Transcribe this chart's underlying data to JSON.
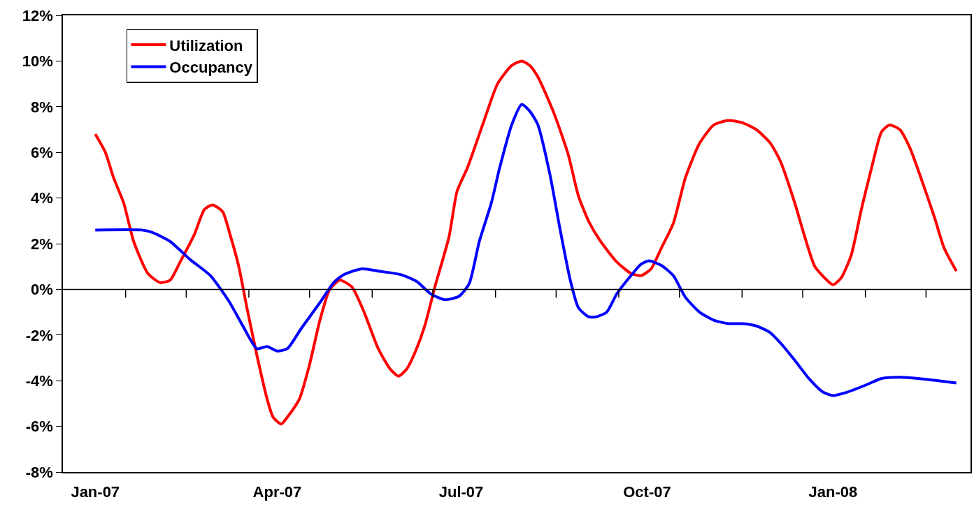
{
  "chart_data": {
    "type": "line",
    "series": [
      {
        "name": "Utilization",
        "color": "#ff0000",
        "x": [
          "2007-01-01",
          "2007-01-06",
          "2007-01-10",
          "2007-01-15",
          "2007-01-20",
          "2007-01-27",
          "2007-02-02",
          "2007-02-07",
          "2007-02-12",
          "2007-02-19",
          "2007-02-24",
          "2007-02-28",
          "2007-03-05",
          "2007-03-09",
          "2007-03-13",
          "2007-03-17",
          "2007-03-22",
          "2007-03-27",
          "2007-03-30",
          "2007-04-03",
          "2007-04-06",
          "2007-04-12",
          "2007-04-17",
          "2007-04-22",
          "2007-04-27",
          "2007-05-02",
          "2007-05-08",
          "2007-05-14",
          "2007-05-21",
          "2007-05-27",
          "2007-05-31",
          "2007-06-04",
          "2007-06-08",
          "2007-06-13",
          "2007-06-18",
          "2007-06-25",
          "2007-06-29",
          "2007-07-04",
          "2007-07-12",
          "2007-07-19",
          "2007-07-26",
          "2007-07-31",
          "2007-08-04",
          "2007-08-08",
          "2007-08-16",
          "2007-08-23",
          "2007-08-28",
          "2007-09-02",
          "2007-09-08",
          "2007-09-16",
          "2007-09-23",
          "2007-09-28",
          "2007-10-03",
          "2007-10-08",
          "2007-10-14",
          "2007-10-20",
          "2007-10-27",
          "2007-11-03",
          "2007-11-10",
          "2007-11-17",
          "2007-11-24",
          "2007-12-01",
          "2007-12-06",
          "2007-12-13",
          "2007-12-18",
          "2007-12-23",
          "2007-12-29",
          "2008-01-01",
          "2008-01-05",
          "2008-01-10",
          "2008-01-15",
          "2008-01-20",
          "2008-01-25",
          "2008-01-29",
          "2008-02-03",
          "2008-02-08",
          "2008-02-13",
          "2008-02-20",
          "2008-02-25",
          "2008-03-02"
        ],
        "values": [
          6.8,
          6.0,
          4.9,
          3.8,
          2.1,
          0.7,
          0.3,
          0.4,
          1.2,
          2.4,
          3.5,
          3.7,
          3.4,
          2.3,
          1.0,
          -0.8,
          -2.9,
          -4.8,
          -5.6,
          -5.9,
          -5.6,
          -4.8,
          -3.3,
          -1.4,
          0.0,
          0.4,
          0.1,
          -1.0,
          -2.6,
          -3.5,
          -3.8,
          -3.5,
          -2.8,
          -1.6,
          0.1,
          2.3,
          4.3,
          5.3,
          7.3,
          9.0,
          9.8,
          10.0,
          9.8,
          9.3,
          7.7,
          5.9,
          4.1,
          3.0,
          2.1,
          1.2,
          0.7,
          0.6,
          0.9,
          1.8,
          2.9,
          4.9,
          6.4,
          7.2,
          7.4,
          7.3,
          7.0,
          6.4,
          5.6,
          3.8,
          2.3,
          1.0,
          0.4,
          0.2,
          0.5,
          1.5,
          3.5,
          5.3,
          6.9,
          7.2,
          7.0,
          6.2,
          5.0,
          3.2,
          1.8,
          0.8
        ]
      },
      {
        "name": "Occupancy",
        "color": "#0000ff",
        "x": [
          "2007-01-01",
          "2007-01-24",
          "2007-01-29",
          "2007-02-07",
          "2007-02-17",
          "2007-02-27",
          "2007-03-08",
          "2007-03-15",
          "2007-03-22",
          "2007-03-27",
          "2007-04-01",
          "2007-04-06",
          "2007-04-13",
          "2007-04-22",
          "2007-04-29",
          "2007-05-04",
          "2007-05-13",
          "2007-05-21",
          "2007-06-01",
          "2007-06-09",
          "2007-06-16",
          "2007-06-23",
          "2007-06-30",
          "2007-07-05",
          "2007-07-10",
          "2007-07-16",
          "2007-07-20",
          "2007-07-26",
          "2007-07-31",
          "2007-08-04",
          "2007-08-08",
          "2007-08-14",
          "2007-08-19",
          "2007-08-24",
          "2007-08-28",
          "2007-09-02",
          "2007-09-06",
          "2007-09-11",
          "2007-09-16",
          "2007-09-23",
          "2007-09-28",
          "2007-10-02",
          "2007-10-08",
          "2007-10-14",
          "2007-10-20",
          "2007-10-27",
          "2007-11-03",
          "2007-11-10",
          "2007-11-17",
          "2007-11-24",
          "2007-12-01",
          "2007-12-06",
          "2007-12-13",
          "2007-12-20",
          "2007-12-27",
          "2008-01-01",
          "2008-01-08",
          "2008-01-17",
          "2008-01-25",
          "2008-02-03",
          "2008-02-12",
          "2008-02-22",
          "2008-03-02"
        ],
        "values": [
          2.6,
          2.6,
          2.5,
          2.1,
          1.3,
          0.6,
          -0.5,
          -1.6,
          -2.6,
          -2.5,
          -2.7,
          -2.6,
          -1.7,
          -0.6,
          0.3,
          0.65,
          0.9,
          0.8,
          0.65,
          0.35,
          -0.2,
          -0.45,
          -0.3,
          0.25,
          2.1,
          3.8,
          5.3,
          7.2,
          8.1,
          7.8,
          7.2,
          5.0,
          2.6,
          0.4,
          -0.8,
          -1.2,
          -1.2,
          -1.0,
          -0.2,
          0.6,
          1.1,
          1.25,
          1.05,
          0.6,
          -0.35,
          -1.0,
          -1.35,
          -1.5,
          -1.5,
          -1.6,
          -1.9,
          -2.35,
          -3.1,
          -3.9,
          -4.5,
          -4.65,
          -4.5,
          -4.2,
          -3.9,
          -3.85,
          -3.9,
          -4.0,
          -4.1
        ]
      }
    ],
    "xlim": [
      "2006-12-16",
      "2008-03-09"
    ],
    "xticks": [
      {
        "value": "2007-01-01",
        "label": "Jan-07"
      },
      {
        "value": "2007-04-01",
        "label": "Apr-07"
      },
      {
        "value": "2007-07-01",
        "label": "Jul-07"
      },
      {
        "value": "2007-10-01",
        "label": "Oct-07"
      },
      {
        "value": "2008-01-01",
        "label": "Jan-08"
      },
      {
        "value": "2007-01-16",
        "label": null
      },
      {
        "value": "2007-02-15",
        "label": null
      },
      {
        "value": "2007-03-18",
        "label": null
      },
      {
        "value": "2007-04-17",
        "label": null
      },
      {
        "value": "2007-05-18",
        "label": null
      },
      {
        "value": "2007-06-17",
        "label": null
      },
      {
        "value": "2007-07-18",
        "label": null
      },
      {
        "value": "2007-08-17",
        "label": null
      },
      {
        "value": "2007-09-17",
        "label": null
      },
      {
        "value": "2007-10-17",
        "label": null
      },
      {
        "value": "2007-11-17",
        "label": null
      },
      {
        "value": "2007-12-17",
        "label": null
      },
      {
        "value": "2008-01-17",
        "label": null
      },
      {
        "value": "2008-02-16",
        "label": null
      }
    ],
    "ylim": [
      -8,
      12
    ],
    "yticks": [
      {
        "value": -8,
        "label": "-8%"
      },
      {
        "value": -6,
        "label": "-6%"
      },
      {
        "value": -4,
        "label": "-4%"
      },
      {
        "value": -2,
        "label": "-2%"
      },
      {
        "value": 0,
        "label": "0%"
      },
      {
        "value": 2,
        "label": "2%"
      },
      {
        "value": 4,
        "label": "4%"
      },
      {
        "value": 6,
        "label": "6%"
      },
      {
        "value": 8,
        "label": "8%"
      },
      {
        "value": 10,
        "label": "10%"
      },
      {
        "value": 12,
        "label": "12%"
      }
    ],
    "legend": "top left",
    "marker": "none",
    "line_style": "solid"
  }
}
